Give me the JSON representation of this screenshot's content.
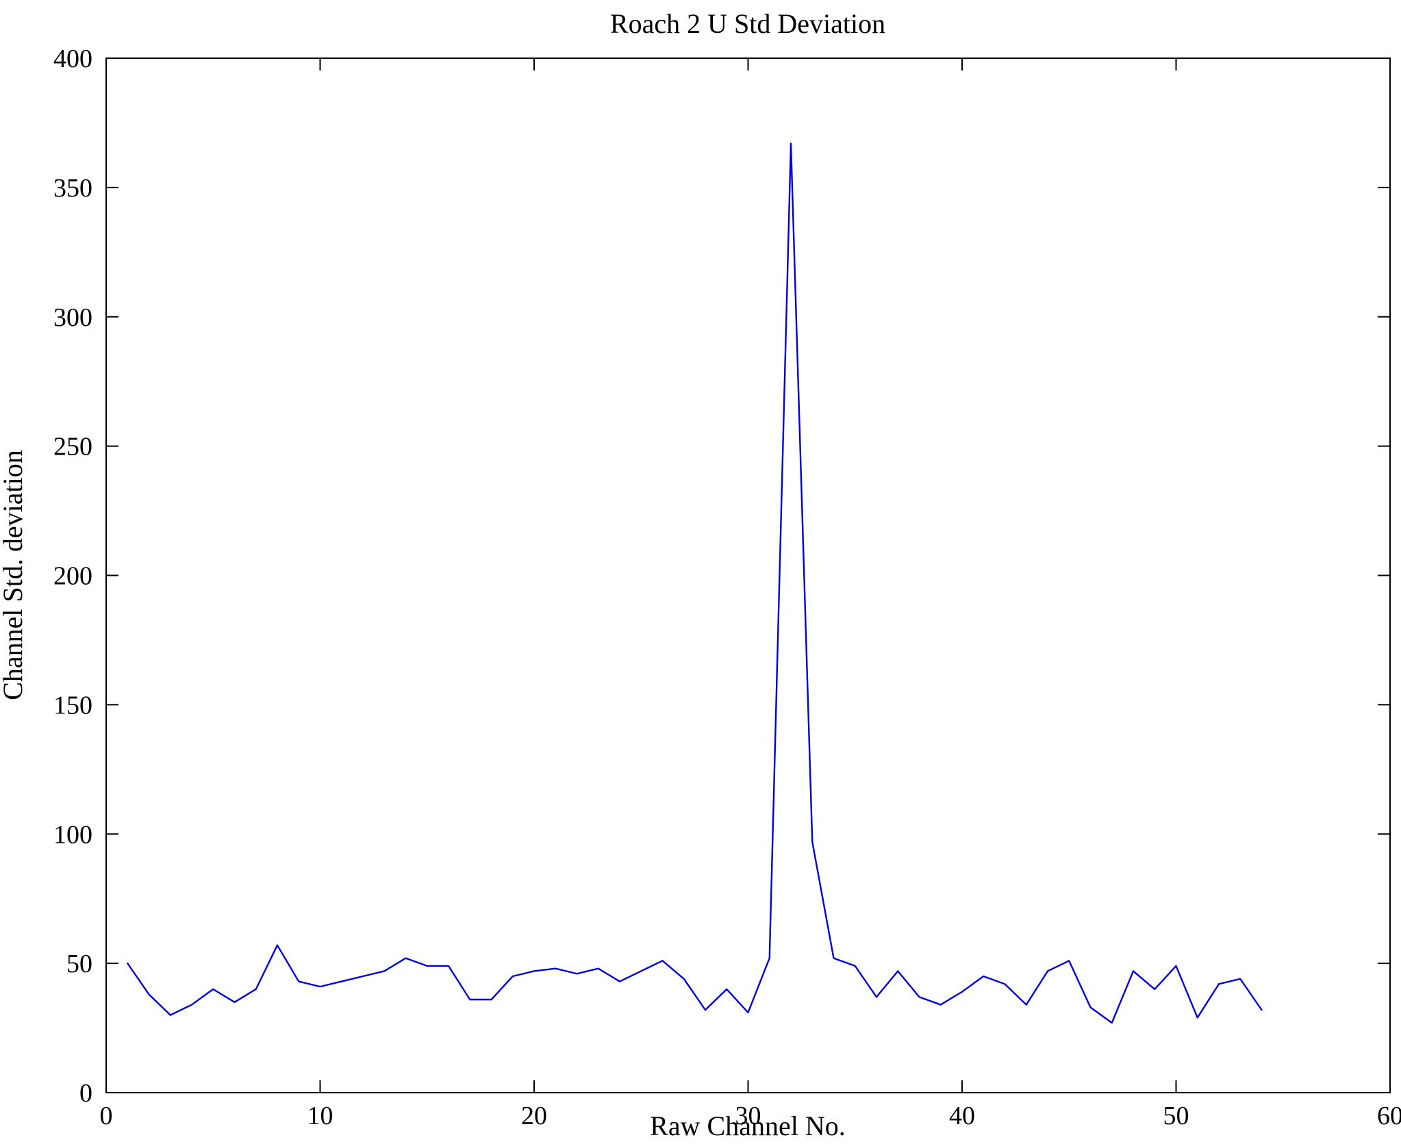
{
  "chart": {
    "title": "Roach 2 U Std Deviation",
    "xlabel": "Raw Channel No.",
    "ylabel": "Channel Std. deviation"
  },
  "chart_data": {
    "type": "line",
    "title": "Roach 2 U Std Deviation",
    "xlabel": "Raw Channel No.",
    "ylabel": "Channel Std. deviation",
    "xlim": [
      0,
      60
    ],
    "ylim": [
      0,
      400
    ],
    "xticks": [
      0,
      10,
      20,
      30,
      40,
      50,
      60
    ],
    "yticks": [
      0,
      50,
      100,
      150,
      200,
      250,
      300,
      350,
      400
    ],
    "grid": false,
    "legend": "none",
    "line_color": "#0000dd",
    "frame_color": "#000000",
    "x": [
      1,
      2,
      3,
      4,
      5,
      6,
      7,
      8,
      9,
      10,
      11,
      12,
      13,
      14,
      15,
      16,
      17,
      18,
      19,
      20,
      21,
      22,
      23,
      24,
      25,
      26,
      27,
      28,
      29,
      30,
      31,
      32,
      33,
      34,
      35,
      36,
      37,
      38,
      39,
      40,
      41,
      42,
      43,
      44,
      45,
      46,
      47,
      48,
      49,
      50,
      51,
      52,
      53,
      54
    ],
    "y": [
      50,
      38,
      30,
      34,
      40,
      35,
      40,
      57,
      43,
      41,
      43,
      45,
      47,
      52,
      49,
      49,
      36,
      36,
      45,
      47,
      48,
      46,
      48,
      43,
      47,
      51,
      44,
      32,
      40,
      31,
      52,
      367,
      97,
      52,
      49,
      37,
      47,
      37,
      34,
      39,
      45,
      42,
      34,
      47,
      51,
      33,
      27,
      47,
      40,
      49,
      29,
      42,
      44,
      32
    ]
  }
}
